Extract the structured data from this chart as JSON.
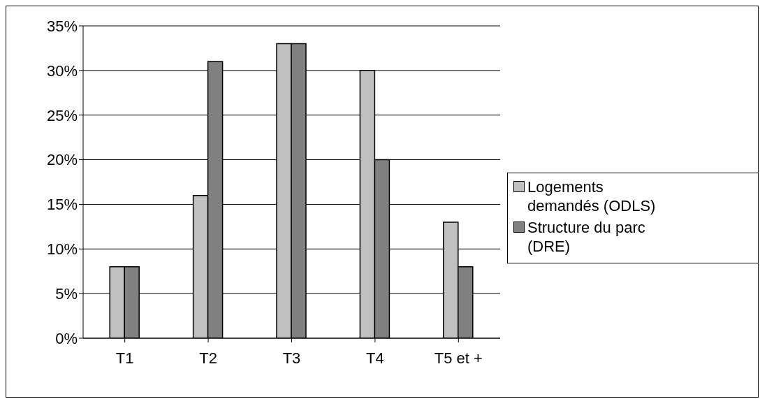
{
  "chart_data": {
    "type": "bar",
    "categories": [
      "T1",
      "T2",
      "T3",
      "T4",
      "T5 et +"
    ],
    "series": [
      {
        "name": "Logements demandés (ODLS)",
        "color": "#c0c0c0",
        "values": [
          8,
          16,
          33,
          30,
          13
        ]
      },
      {
        "name": "Structure du parc (DRE)",
        "color": "#808080",
        "values": [
          8,
          31,
          33,
          20,
          8
        ]
      }
    ],
    "ylim": [
      0,
      35
    ],
    "yticks": [
      {
        "value": 0,
        "label": "0%"
      },
      {
        "value": 5,
        "label": "5%"
      },
      {
        "value": 10,
        "label": "10%"
      },
      {
        "value": 15,
        "label": "15%"
      },
      {
        "value": 20,
        "label": "20%"
      },
      {
        "value": 25,
        "label": "25%"
      },
      {
        "value": 30,
        "label": "30%"
      },
      {
        "value": 35,
        "label": "35%"
      }
    ],
    "grid": "y",
    "legend": "right"
  }
}
